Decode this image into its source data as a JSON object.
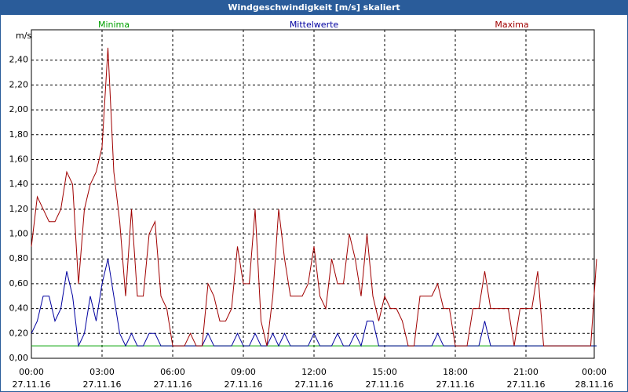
{
  "chart_data": {
    "type": "line",
    "title": "Windgeschwindigkeit [m/s] skaliert",
    "ylabel": "m/s",
    "x": [
      0,
      0.25,
      0.5,
      0.75,
      1,
      1.25,
      1.5,
      1.75,
      2,
      2.25,
      2.5,
      2.75,
      3,
      3.25,
      3.5,
      3.75,
      4,
      4.25,
      4.5,
      4.75,
      5,
      5.25,
      5.5,
      5.75,
      6,
      6.25,
      6.5,
      6.75,
      7,
      7.25,
      7.5,
      7.75,
      8,
      8.25,
      8.5,
      8.75,
      9,
      9.25,
      9.5,
      9.75,
      10,
      10.25,
      10.5,
      10.75,
      11,
      11.25,
      11.5,
      11.75,
      12,
      12.25,
      12.5,
      12.75,
      13,
      13.25,
      13.5,
      13.75,
      14,
      14.25,
      14.5,
      14.75,
      15,
      15.25,
      15.5,
      15.75,
      16,
      16.25,
      16.5,
      16.75,
      17,
      17.25,
      17.5,
      17.75,
      18,
      18.25,
      18.5,
      18.75,
      19,
      19.25,
      19.5,
      19.75,
      20,
      20.25,
      20.5,
      20.75,
      21,
      21.25,
      21.5,
      21.75,
      22,
      22.25,
      22.5,
      22.75,
      23,
      23.25,
      23.5,
      23.75,
      24
    ],
    "series": [
      {
        "name": "Minima",
        "color": "#00a000",
        "values": [
          0.1,
          0.1,
          0.1,
          0.1,
          0.1,
          0.1,
          0.1,
          0.1,
          0.1,
          0.1,
          0.1,
          0.1,
          0.1,
          0.1,
          0.1,
          0.1,
          0.1,
          0.1,
          0.1,
          0.1,
          0.1,
          0.1,
          0.1,
          0.1,
          0.1,
          0.1,
          0.1,
          0.1,
          0.1,
          0.1,
          0.1,
          0.1,
          0.1,
          0.1,
          0.1,
          0.1,
          0.1,
          0.1,
          0.1,
          0.1,
          0.1,
          0.1,
          0.1,
          0.1,
          0.1,
          0.1,
          0.1,
          0.1,
          0.1,
          0.1,
          0.1,
          0.1,
          0.1,
          0.1,
          0.1,
          0.1,
          0.1,
          0.1,
          0.1,
          0.1,
          0.1,
          0.1,
          0.1,
          0.1,
          0.1,
          0.1,
          0.1,
          0.1,
          0.1,
          0.1,
          0.1,
          0.1,
          0.1,
          0.1,
          0.1,
          0.1,
          0.1,
          0.1,
          0.1,
          0.1,
          0.1,
          0.1,
          0.1,
          0.1,
          0.1,
          0.1,
          0.1,
          0.1,
          0.1,
          0.1,
          0.1,
          0.1,
          0.1,
          0.1,
          0.1,
          0.1,
          0.1
        ]
      },
      {
        "name": "Mittelwerte",
        "color": "#0000a0",
        "values": [
          0.2,
          0.3,
          0.5,
          0.5,
          0.3,
          0.4,
          0.7,
          0.5,
          0.1,
          0.2,
          0.5,
          0.3,
          0.6,
          0.8,
          0.5,
          0.2,
          0.1,
          0.2,
          0.1,
          0.1,
          0.2,
          0.2,
          0.1,
          0.1,
          0.1,
          0.1,
          0.1,
          0.1,
          0.1,
          0.1,
          0.2,
          0.1,
          0.1,
          0.1,
          0.1,
          0.2,
          0.1,
          0.1,
          0.2,
          0.1,
          0.1,
          0.2,
          0.1,
          0.2,
          0.1,
          0.1,
          0.1,
          0.1,
          0.2,
          0.1,
          0.1,
          0.1,
          0.2,
          0.1,
          0.1,
          0.2,
          0.1,
          0.3,
          0.3,
          0.1,
          0.1,
          0.1,
          0.1,
          0.1,
          0.1,
          0.1,
          0.1,
          0.1,
          0.1,
          0.2,
          0.1,
          0.1,
          0.1,
          0.1,
          0.1,
          0.1,
          0.1,
          0.3,
          0.1,
          0.1,
          0.1,
          0.1,
          0.1,
          0.1,
          0.1,
          0.1,
          0.1,
          0.1,
          0.1,
          0.1,
          0.1,
          0.1,
          0.1,
          0.1,
          0.1,
          0.1,
          0.1
        ]
      },
      {
        "name": "Maxima",
        "color": "#a00000",
        "values": [
          0.9,
          1.3,
          1.2,
          1.1,
          1.1,
          1.2,
          1.5,
          1.4,
          0.6,
          1.2,
          1.4,
          1.5,
          1.7,
          2.5,
          1.5,
          1.1,
          0.5,
          1.2,
          0.5,
          0.5,
          1.0,
          1.1,
          0.5,
          0.4,
          0.1,
          0.1,
          0.1,
          0.2,
          0.1,
          0.1,
          0.6,
          0.5,
          0.3,
          0.3,
          0.4,
          0.9,
          0.6,
          0.6,
          1.2,
          0.3,
          0.1,
          0.5,
          1.2,
          0.8,
          0.5,
          0.5,
          0.5,
          0.6,
          0.9,
          0.5,
          0.4,
          0.8,
          0.6,
          0.6,
          1.0,
          0.8,
          0.5,
          1.0,
          0.5,
          0.3,
          0.5,
          0.4,
          0.4,
          0.3,
          0.1,
          0.1,
          0.5,
          0.5,
          0.5,
          0.6,
          0.4,
          0.4,
          0.1,
          0.1,
          0.1,
          0.4,
          0.4,
          0.7,
          0.4,
          0.4,
          0.4,
          0.4,
          0.1,
          0.4,
          0.4,
          0.4,
          0.7,
          0.1,
          0.1,
          0.1,
          0.1,
          0.1,
          0.1,
          0.1,
          0.1,
          0.1,
          0.8
        ]
      }
    ],
    "xlim": [
      0,
      24
    ],
    "xticks": [
      {
        "value": 0,
        "label": "00:00"
      },
      {
        "value": 3,
        "label": "03:00"
      },
      {
        "value": 6,
        "label": "06:00"
      },
      {
        "value": 9,
        "label": "09:00"
      },
      {
        "value": 12,
        "label": "12:00"
      },
      {
        "value": 15,
        "label": "15:00"
      },
      {
        "value": 18,
        "label": "18:00"
      },
      {
        "value": 21,
        "label": "21:00"
      },
      {
        "value": 24,
        "label": "00:00"
      }
    ],
    "xtick_dates": [
      "27.11.16",
      "27.11.16",
      "27.11.16",
      "27.11.16",
      "27.11.16",
      "27.11.16",
      "27.11.16",
      "27.11.16",
      "28.11.16"
    ],
    "ylim": [
      0,
      2.6
    ],
    "yticks": [
      {
        "value": 0,
        "label": "0,00"
      },
      {
        "value": 0.2,
        "label": "0,20"
      },
      {
        "value": 0.4,
        "label": "0,40"
      },
      {
        "value": 0.6,
        "label": "0,60"
      },
      {
        "value": 0.8,
        "label": "0,80"
      },
      {
        "value": 1,
        "label": "1,00"
      },
      {
        "value": 1.2,
        "label": "1,20"
      },
      {
        "value": 1.4,
        "label": "1,40"
      },
      {
        "value": 1.6,
        "label": "1,60"
      },
      {
        "value": 1.8,
        "label": "1,80"
      },
      {
        "value": 2,
        "label": "2,00"
      },
      {
        "value": 2.2,
        "label": "2,20"
      },
      {
        "value": 2.4,
        "label": "2,40"
      }
    ],
    "grid": true,
    "legend": "top"
  }
}
